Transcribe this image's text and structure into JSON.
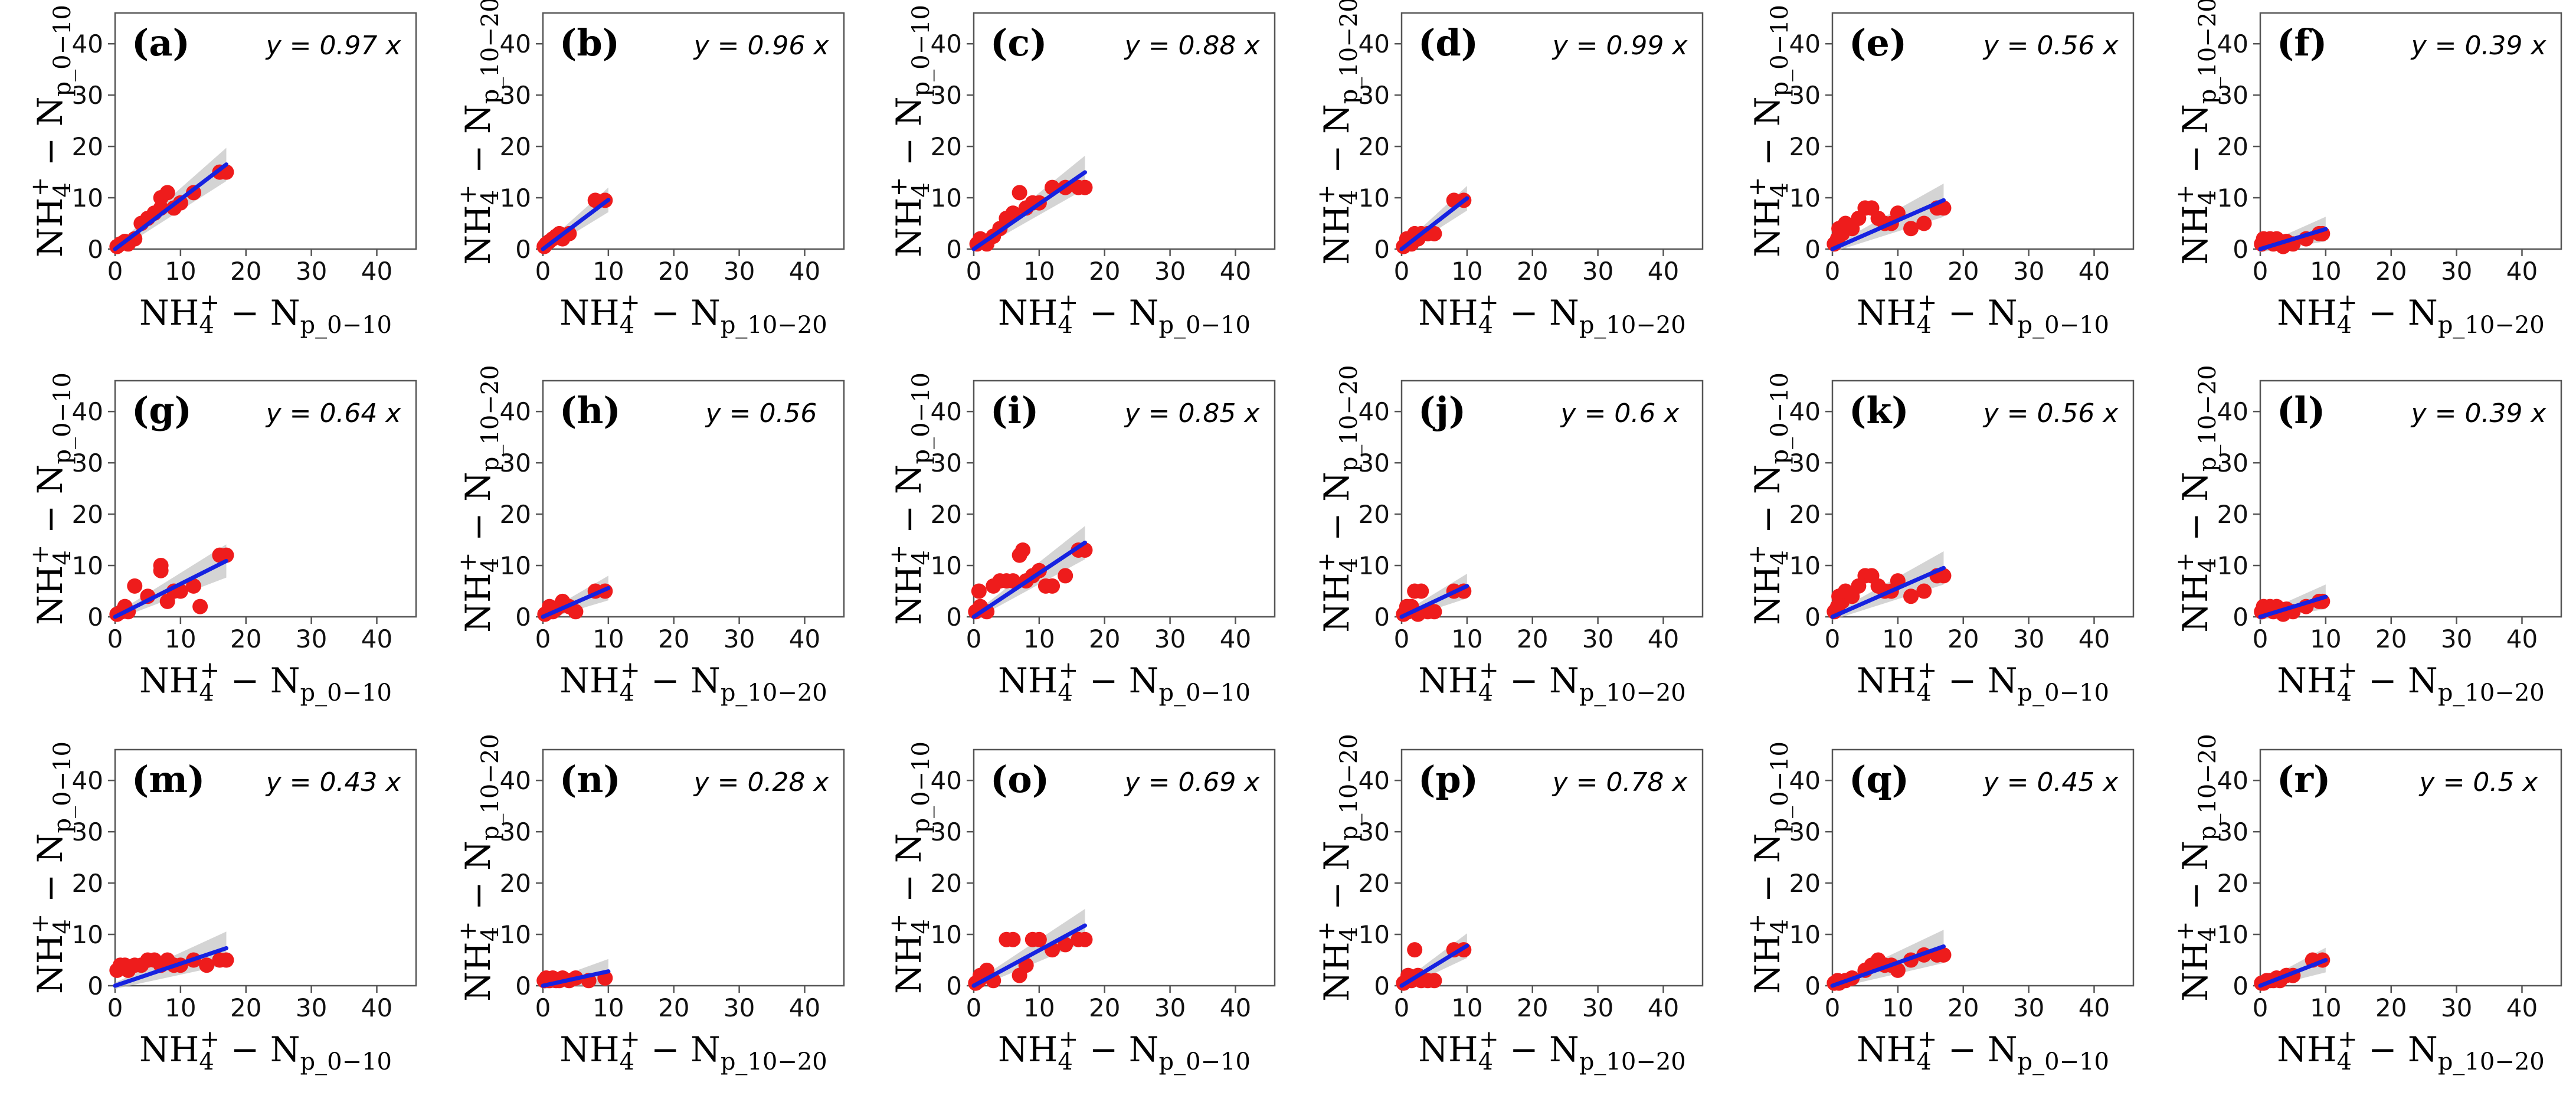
{
  "figure": {
    "colors": {
      "points": "#ee1c1c",
      "fit_line": "#1622e0",
      "confidence_band": "#bdbdbd"
    },
    "axis_title_parts": {
      "main": "NH",
      "sub_ion": "4",
      "sup_ion": "+",
      "dash_n": " − N"
    }
  },
  "chart_data": [
    {
      "label": "(a)",
      "equation": "y = 0.97 x",
      "type": "scatter",
      "xlabel": "NH4+ − Np_0−10",
      "ylabel": "NH4+ − Np_0−10",
      "x_sub": "p_0−10",
      "y_sub": "p_0−10",
      "xlim": [
        0,
        46
      ],
      "ylim": [
        0,
        46
      ],
      "xticks": [
        0,
        10,
        20,
        30,
        40
      ],
      "yticks": [
        0,
        10,
        20,
        30,
        40
      ],
      "slope": 0.97,
      "fit_range": [
        0,
        17
      ],
      "x": [
        0.3,
        0.8,
        1.5,
        2,
        3,
        4,
        5,
        6,
        7,
        7,
        8,
        9,
        10,
        12,
        16,
        17
      ],
      "y": [
        0.5,
        1,
        1.5,
        1,
        2,
        5,
        6,
        7,
        8,
        10,
        11,
        8,
        9,
        11,
        15,
        15
      ]
    },
    {
      "label": "(b)",
      "equation": "y = 0.96 x",
      "type": "scatter",
      "xlabel": "NH4+ − Np_10−20",
      "ylabel": "NH4+ − Np_10−20",
      "x_sub": "p_10−20",
      "y_sub": "p_10−20",
      "xlim": [
        0,
        46
      ],
      "ylim": [
        0,
        46
      ],
      "xticks": [
        0,
        10,
        20,
        30,
        40
      ],
      "yticks": [
        0,
        10,
        20,
        30,
        40
      ],
      "slope": 0.96,
      "fit_range": [
        0,
        10
      ],
      "x": [
        0.2,
        0.5,
        1,
        1.5,
        2,
        2.5,
        3,
        4,
        8,
        9.5
      ],
      "y": [
        0.5,
        1,
        1.5,
        2,
        2.5,
        3,
        2,
        3,
        9.5,
        9.5
      ]
    },
    {
      "label": "(c)",
      "equation": "y = 0.88 x",
      "type": "scatter",
      "xlabel": "NH4+ − Np_0−10",
      "ylabel": "NH4+ − Np_0−10",
      "x_sub": "p_0−10",
      "y_sub": "p_0−10",
      "xlim": [
        0,
        46
      ],
      "ylim": [
        0,
        46
      ],
      "xticks": [
        0,
        10,
        20,
        30,
        40
      ],
      "yticks": [
        0,
        10,
        20,
        30,
        40
      ],
      "slope": 0.88,
      "fit_range": [
        0,
        17
      ],
      "x": [
        0.5,
        1,
        2,
        3,
        4,
        5,
        6,
        7,
        8,
        9,
        10,
        12,
        14,
        16,
        17
      ],
      "y": [
        1,
        2,
        1,
        2.5,
        4,
        6,
        7,
        11,
        8,
        9,
        9,
        12,
        12,
        12,
        12
      ]
    },
    {
      "label": "(d)",
      "equation": "y = 0.99 x",
      "type": "scatter",
      "xlabel": "NH4+ − Np_10−20",
      "ylabel": "NH4+ − Np_10−20",
      "x_sub": "p_10−20",
      "y_sub": "p_10−20",
      "xlim": [
        0,
        46
      ],
      "ylim": [
        0,
        46
      ],
      "xticks": [
        0,
        10,
        20,
        30,
        40
      ],
      "yticks": [
        0,
        10,
        20,
        30,
        40
      ],
      "slope": 0.99,
      "fit_range": [
        0,
        10
      ],
      "x": [
        0.3,
        0.8,
        1.5,
        2,
        2.5,
        3,
        4,
        5,
        8,
        9.5
      ],
      "y": [
        0.5,
        2,
        1,
        3,
        2,
        3,
        3,
        3,
        9.5,
        9.5
      ]
    },
    {
      "label": "(e)",
      "equation": "y = 0.56 x",
      "type": "scatter",
      "xlabel": "NH4+ − Np_0−10",
      "ylabel": "NH4+ − Np_0−10",
      "x_sub": "p_0−10",
      "y_sub": "p_0−10",
      "xlim": [
        0,
        46
      ],
      "ylim": [
        0,
        46
      ],
      "xticks": [
        0,
        10,
        20,
        30,
        40
      ],
      "yticks": [
        0,
        10,
        20,
        30,
        40
      ],
      "slope": 0.56,
      "fit_range": [
        0,
        17
      ],
      "x": [
        0.3,
        0.8,
        1,
        1.5,
        2,
        3,
        4,
        5,
        6,
        7,
        8,
        9,
        10,
        12,
        14,
        16,
        17
      ],
      "y": [
        1,
        2,
        4,
        3,
        5,
        4,
        6,
        8,
        8,
        6,
        5,
        5,
        7,
        4,
        5,
        8,
        8
      ]
    },
    {
      "label": "(f)",
      "equation": "y = 0.39 x",
      "type": "scatter",
      "xlabel": "NH4+ − Np_10−20",
      "ylabel": "NH4+ − Np_10−20",
      "x_sub": "p_10−20",
      "y_sub": "p_10−20",
      "xlim": [
        0,
        46
      ],
      "ylim": [
        0,
        46
      ],
      "xticks": [
        0,
        10,
        20,
        30,
        40
      ],
      "yticks": [
        0,
        10,
        20,
        30,
        40
      ],
      "slope": 0.39,
      "fit_range": [
        0,
        10
      ],
      "x": [
        0.2,
        0.5,
        1,
        1.5,
        2,
        2.5,
        3,
        3.5,
        4,
        5,
        7,
        9,
        9.5
      ],
      "y": [
        1,
        2,
        1.5,
        2,
        1,
        2,
        1.5,
        0.5,
        1.5,
        1,
        2,
        3,
        3
      ]
    },
    {
      "label": "(g)",
      "equation": "y = 0.64 x",
      "type": "scatter",
      "xlabel": "NH4+ − Np_0−10",
      "ylabel": "NH4+ − Np_0−10",
      "x_sub": "p_0−10",
      "y_sub": "p_0−10",
      "xlim": [
        0,
        46
      ],
      "ylim": [
        0,
        46
      ],
      "xticks": [
        0,
        10,
        20,
        30,
        40
      ],
      "yticks": [
        0,
        10,
        20,
        30,
        40
      ],
      "slope": 0.64,
      "fit_range": [
        0,
        17
      ],
      "x": [
        0.3,
        1,
        1.5,
        2,
        3,
        5,
        7,
        7,
        8,
        9,
        10,
        12,
        13,
        16,
        17
      ],
      "y": [
        0.5,
        1,
        2,
        1,
        6,
        4,
        9,
        10,
        3,
        5,
        5,
        6,
        2,
        12,
        12
      ]
    },
    {
      "label": "(h)",
      "equation": "y = 0.56",
      "type": "scatter",
      "xlabel": "NH4+ − Np_10−20",
      "ylabel": "NH4+ − Np_10−20",
      "x_sub": "p_10−20",
      "y_sub": "p_10−20",
      "xlim": [
        0,
        46
      ],
      "ylim": [
        0,
        46
      ],
      "xticks": [
        0,
        10,
        20,
        30,
        40
      ],
      "yticks": [
        0,
        10,
        20,
        30,
        40
      ],
      "slope": 0.56,
      "fit_range": [
        0,
        10
      ],
      "x": [
        0.3,
        0.8,
        1,
        1.5,
        2,
        2.5,
        3,
        4,
        5,
        8,
        9.5
      ],
      "y": [
        0.5,
        1,
        2,
        1,
        1.5,
        2,
        3,
        2,
        1,
        5,
        5
      ]
    },
    {
      "label": "(i)",
      "equation": "y = 0.85 x",
      "type": "scatter",
      "xlabel": "NH4+ − Np_0−10",
      "ylabel": "NH4+ − Np_0−10",
      "x_sub": "p_0−10",
      "y_sub": "p_0−10",
      "xlim": [
        0,
        46
      ],
      "ylim": [
        0,
        46
      ],
      "xticks": [
        0,
        10,
        20,
        30,
        40
      ],
      "yticks": [
        0,
        10,
        20,
        30,
        40
      ],
      "slope": 0.85,
      "fit_range": [
        0,
        17
      ],
      "x": [
        0.3,
        0.8,
        1,
        2,
        3,
        4,
        5,
        6,
        7,
        7.5,
        8,
        9,
        10,
        11,
        12,
        14,
        16,
        17
      ],
      "y": [
        1,
        5,
        2,
        1,
        6,
        7,
        7,
        7,
        12,
        13,
        7,
        8,
        9,
        6,
        6,
        8,
        13,
        13
      ]
    },
    {
      "label": "(j)",
      "equation": "y = 0.6 x",
      "type": "scatter",
      "xlabel": "NH4+ − Np_10−20",
      "ylabel": "NH4+ − Np_10−20",
      "x_sub": "p_10−20",
      "y_sub": "p_10−20",
      "xlim": [
        0,
        46
      ],
      "ylim": [
        0,
        46
      ],
      "xticks": [
        0,
        10,
        20,
        30,
        40
      ],
      "yticks": [
        0,
        10,
        20,
        30,
        40
      ],
      "slope": 0.6,
      "fit_range": [
        0,
        10
      ],
      "x": [
        0.3,
        0.8,
        1,
        1.5,
        2,
        2.5,
        3,
        4,
        5,
        8,
        9.5
      ],
      "y": [
        0.5,
        2,
        1,
        2,
        5,
        0.5,
        5,
        1,
        1,
        5,
        5
      ]
    },
    {
      "label": "(k)",
      "equation": "y = 0.56 x",
      "type": "scatter",
      "xlabel": "NH4+ − Np_0−10",
      "ylabel": "NH4+ − Np_0−10",
      "x_sub": "p_0−10",
      "y_sub": "p_0−10",
      "xlim": [
        0,
        46
      ],
      "ylim": [
        0,
        46
      ],
      "xticks": [
        0,
        10,
        20,
        30,
        40
      ],
      "yticks": [
        0,
        10,
        20,
        30,
        40
      ],
      "slope": 0.56,
      "fit_range": [
        0,
        17
      ],
      "x": [
        0.3,
        0.8,
        1,
        1.5,
        2,
        3,
        4,
        5,
        6,
        7,
        8,
        9,
        10,
        12,
        14,
        16,
        17
      ],
      "y": [
        1,
        2,
        4,
        3,
        5,
        4,
        6,
        8,
        8,
        6,
        5,
        5,
        7,
        4,
        5,
        8,
        8
      ]
    },
    {
      "label": "(l)",
      "equation": "y = 0.39 x",
      "type": "scatter",
      "xlabel": "NH4+ − Np_10−20",
      "ylabel": "NH4+ − Np_10−20",
      "x_sub": "p_10−20",
      "y_sub": "p_10−20",
      "xlim": [
        0,
        46
      ],
      "ylim": [
        0,
        46
      ],
      "xticks": [
        0,
        10,
        20,
        30,
        40
      ],
      "yticks": [
        0,
        10,
        20,
        30,
        40
      ],
      "slope": 0.39,
      "fit_range": [
        0,
        10
      ],
      "x": [
        0.2,
        0.5,
        1,
        1.5,
        2,
        2.5,
        3,
        3.5,
        4,
        5,
        7,
        9,
        9.5
      ],
      "y": [
        1,
        2,
        1.5,
        2,
        1,
        2,
        1.5,
        0.5,
        1.5,
        1,
        2,
        3,
        3
      ]
    },
    {
      "label": "(m)",
      "equation": "y = 0.43 x",
      "type": "scatter",
      "xlabel": "NH4+ − Np_0−10",
      "ylabel": "NH4+ − Np_0−10",
      "x_sub": "p_0−10",
      "y_sub": "p_0−10",
      "xlim": [
        0,
        46
      ],
      "ylim": [
        0,
        46
      ],
      "xticks": [
        0,
        10,
        20,
        30,
        40
      ],
      "yticks": [
        0,
        10,
        20,
        30,
        40
      ],
      "slope": 0.43,
      "fit_range": [
        0,
        17
      ],
      "x": [
        0.3,
        0.8,
        1,
        1.5,
        2,
        3,
        4,
        5,
        6,
        7,
        8,
        9,
        10,
        12,
        14,
        16,
        17
      ],
      "y": [
        3,
        4,
        3.5,
        4,
        3,
        4,
        4,
        5,
        5,
        4,
        5,
        4,
        4,
        5,
        4,
        5,
        5
      ]
    },
    {
      "label": "(n)",
      "equation": "y = 0.28 x",
      "type": "scatter",
      "xlabel": "NH4+ − Np_10−20",
      "ylabel": "NH4+ − Np_10−20",
      "x_sub": "p_10−20",
      "y_sub": "p_10−20",
      "xlim": [
        0,
        46
      ],
      "ylim": [
        0,
        46
      ],
      "xticks": [
        0,
        10,
        20,
        30,
        40
      ],
      "yticks": [
        0,
        10,
        20,
        30,
        40
      ],
      "slope": 0.28,
      "fit_range": [
        0,
        10
      ],
      "x": [
        0.2,
        0.5,
        1,
        1.5,
        2,
        2.5,
        3,
        4,
        5,
        7,
        9.5
      ],
      "y": [
        1,
        1.5,
        1,
        1.5,
        1,
        1,
        1.5,
        1,
        1.5,
        1,
        1.5
      ]
    },
    {
      "label": "(o)",
      "equation": "y = 0.69 x",
      "type": "scatter",
      "xlabel": "NH4+ − Np_0−10",
      "ylabel": "NH4+ − Np_0−10",
      "x_sub": "p_0−10",
      "y_sub": "p_0−10",
      "xlim": [
        0,
        46
      ],
      "ylim": [
        0,
        46
      ],
      "xticks": [
        0,
        10,
        20,
        30,
        40
      ],
      "yticks": [
        0,
        10,
        20,
        30,
        40
      ],
      "slope": 0.69,
      "fit_range": [
        0,
        17
      ],
      "x": [
        0.3,
        0.8,
        1,
        2,
        3,
        5,
        6,
        7,
        8,
        9,
        10,
        12,
        14,
        16,
        17
      ],
      "y": [
        0.5,
        1,
        2,
        3,
        1,
        9,
        9,
        2,
        4,
        9,
        9,
        7,
        8,
        9,
        9
      ]
    },
    {
      "label": "(p)",
      "equation": "y = 0.78 x",
      "type": "scatter",
      "xlabel": "NH4+ − Np_10−20",
      "ylabel": "NH4+ − Np_10−20",
      "x_sub": "p_10−20",
      "y_sub": "p_10−20",
      "xlim": [
        0,
        46
      ],
      "ylim": [
        0,
        46
      ],
      "xticks": [
        0,
        10,
        20,
        30,
        40
      ],
      "yticks": [
        0,
        10,
        20,
        30,
        40
      ],
      "slope": 0.78,
      "fit_range": [
        0,
        10
      ],
      "x": [
        0.3,
        0.8,
        1,
        1.5,
        2,
        2.5,
        3,
        4,
        5,
        8,
        9.5
      ],
      "y": [
        0.5,
        1,
        2,
        1,
        7,
        2,
        1,
        1,
        1,
        7,
        7
      ]
    },
    {
      "label": "(q)",
      "equation": "y = 0.45 x",
      "type": "scatter",
      "xlabel": "NH4+ − Np_0−10",
      "ylabel": "NH4+ − Np_0−10",
      "x_sub": "p_0−10",
      "y_sub": "p_0−10",
      "xlim": [
        0,
        46
      ],
      "ylim": [
        0,
        46
      ],
      "xticks": [
        0,
        10,
        20,
        30,
        40
      ],
      "yticks": [
        0,
        10,
        20,
        30,
        40
      ],
      "slope": 0.45,
      "fit_range": [
        0,
        17
      ],
      "x": [
        0.3,
        0.8,
        1,
        2,
        3,
        5,
        6,
        7,
        8,
        9,
        10,
        12,
        14,
        16,
        17
      ],
      "y": [
        0.5,
        1,
        0.5,
        1,
        1.5,
        3,
        4,
        5,
        4,
        4,
        3,
        5,
        6,
        6,
        6
      ]
    },
    {
      "label": "(r)",
      "equation": "y = 0.5 x",
      "type": "scatter",
      "xlabel": "NH4+ − Np_10−20",
      "ylabel": "NH4+ − Np_10−20",
      "x_sub": "p_10−20",
      "y_sub": "p_10−20",
      "xlim": [
        0,
        46
      ],
      "ylim": [
        0,
        46
      ],
      "xticks": [
        0,
        10,
        20,
        30,
        40
      ],
      "yticks": [
        0,
        10,
        20,
        30,
        40
      ],
      "slope": 0.5,
      "fit_range": [
        0,
        10
      ],
      "x": [
        0.2,
        0.5,
        1,
        1.5,
        2,
        2.5,
        3,
        4,
        5,
        8,
        9.5
      ],
      "y": [
        0.5,
        0.5,
        1,
        1,
        1,
        1.5,
        1,
        2,
        2,
        5,
        5
      ]
    }
  ]
}
